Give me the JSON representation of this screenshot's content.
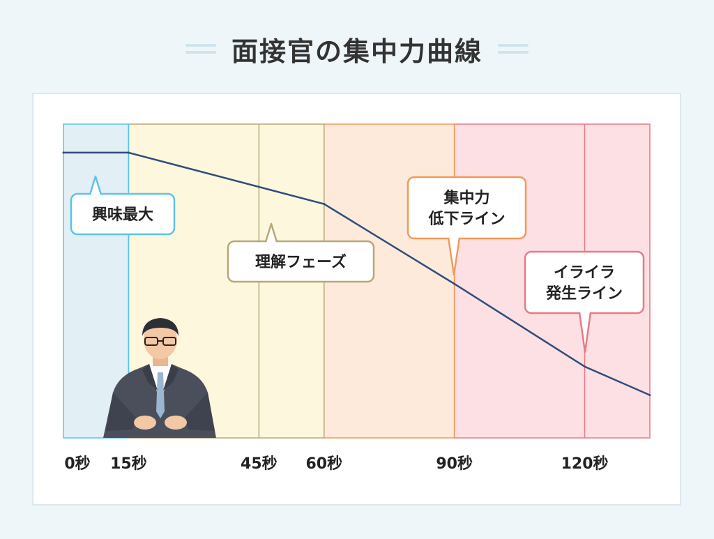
{
  "title": "面接官の集中力曲線",
  "colors": {
    "zone_interest": "#e2eff5",
    "zone_understanding": "#fdf7dd",
    "zone_drop": "#fdeadb",
    "zone_irritation": "#fde0e3",
    "border_interest": "#5bc3e6",
    "border_understanding": "#b5a878",
    "border_drop": "#ef9a5b",
    "border_irritation": "#e77a83",
    "line": "#2f4d7a"
  },
  "chart_data": {
    "type": "line",
    "x": [
      0,
      15,
      60,
      90,
      120,
      135
    ],
    "y": [
      100,
      100,
      82,
      54,
      25,
      15
    ],
    "xlim": [
      0,
      135
    ],
    "ylim": [
      0,
      110
    ],
    "x_ticks": [
      {
        "value": 0,
        "label": "0秒"
      },
      {
        "value": 15,
        "label": "15秒"
      },
      {
        "value": 45,
        "label": "45秒"
      },
      {
        "value": 60,
        "label": "60秒"
      },
      {
        "value": 90,
        "label": "90秒"
      },
      {
        "value": 120,
        "label": "120秒"
      }
    ],
    "zones": [
      {
        "from": 0,
        "to": 15,
        "name": "interest"
      },
      {
        "from": 15,
        "to": 60,
        "name": "understanding"
      },
      {
        "from": 60,
        "to": 90,
        "name": "drop"
      },
      {
        "from": 90,
        "to": 135,
        "name": "irritation"
      }
    ],
    "annotations": [
      {
        "label": "興味最大",
        "zone": "interest"
      },
      {
        "label": "理解フェーズ",
        "zone": "understanding"
      },
      {
        "label": "集中力\n低下ライン",
        "zone": "drop"
      },
      {
        "label": "イライラ\n発生ライン",
        "zone": "irritation"
      }
    ]
  }
}
